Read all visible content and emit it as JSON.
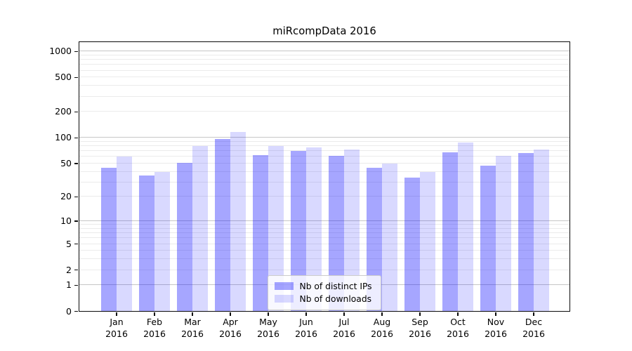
{
  "title": "miRcompData 2016",
  "chart_data": {
    "type": "bar",
    "title": "miRcompData 2016",
    "xlabel": "",
    "ylabel": "",
    "categories": [
      "Jan",
      "Feb",
      "Mar",
      "Apr",
      "May",
      "Jun",
      "Jul",
      "Aug",
      "Sep",
      "Oct",
      "Nov",
      "Dec"
    ],
    "category_year": "2016",
    "series": [
      {
        "name": "Nb of distinct IPs",
        "color": "rgba(0,0,255,0.35)",
        "values": [
          44,
          36,
          50,
          96,
          62,
          70,
          61,
          44,
          34,
          67,
          47,
          66
        ]
      },
      {
        "name": "Nb of downloads",
        "color": "rgba(0,0,255,0.15)",
        "values": [
          60,
          39,
          80,
          116,
          80,
          77,
          72,
          49,
          39,
          87,
          61,
          72
        ]
      }
    ],
    "yscale": "log10(1+v)",
    "y_tick_values": [
      1000,
      500,
      200,
      100,
      50,
      20,
      10,
      5,
      2,
      1,
      0
    ],
    "y_tick_labels": [
      "1000",
      "500",
      "200",
      "100",
      "50",
      "20",
      "10",
      "5",
      "2",
      "1",
      "0"
    ],
    "y_major_grid": [
      1,
      10,
      100,
      1000
    ],
    "y_minor_grid": [
      2,
      3,
      4,
      5,
      6,
      7,
      8,
      9,
      20,
      30,
      40,
      50,
      60,
      70,
      80,
      90,
      200,
      300,
      400,
      500,
      600,
      700,
      800,
      900
    ],
    "grid_major_color": "#c6c6c6",
    "grid_minor_color": "#ebebeb",
    "legend": {
      "position": "lower center",
      "items": [
        "Nb of distinct IPs",
        "Nb of downloads"
      ]
    }
  }
}
